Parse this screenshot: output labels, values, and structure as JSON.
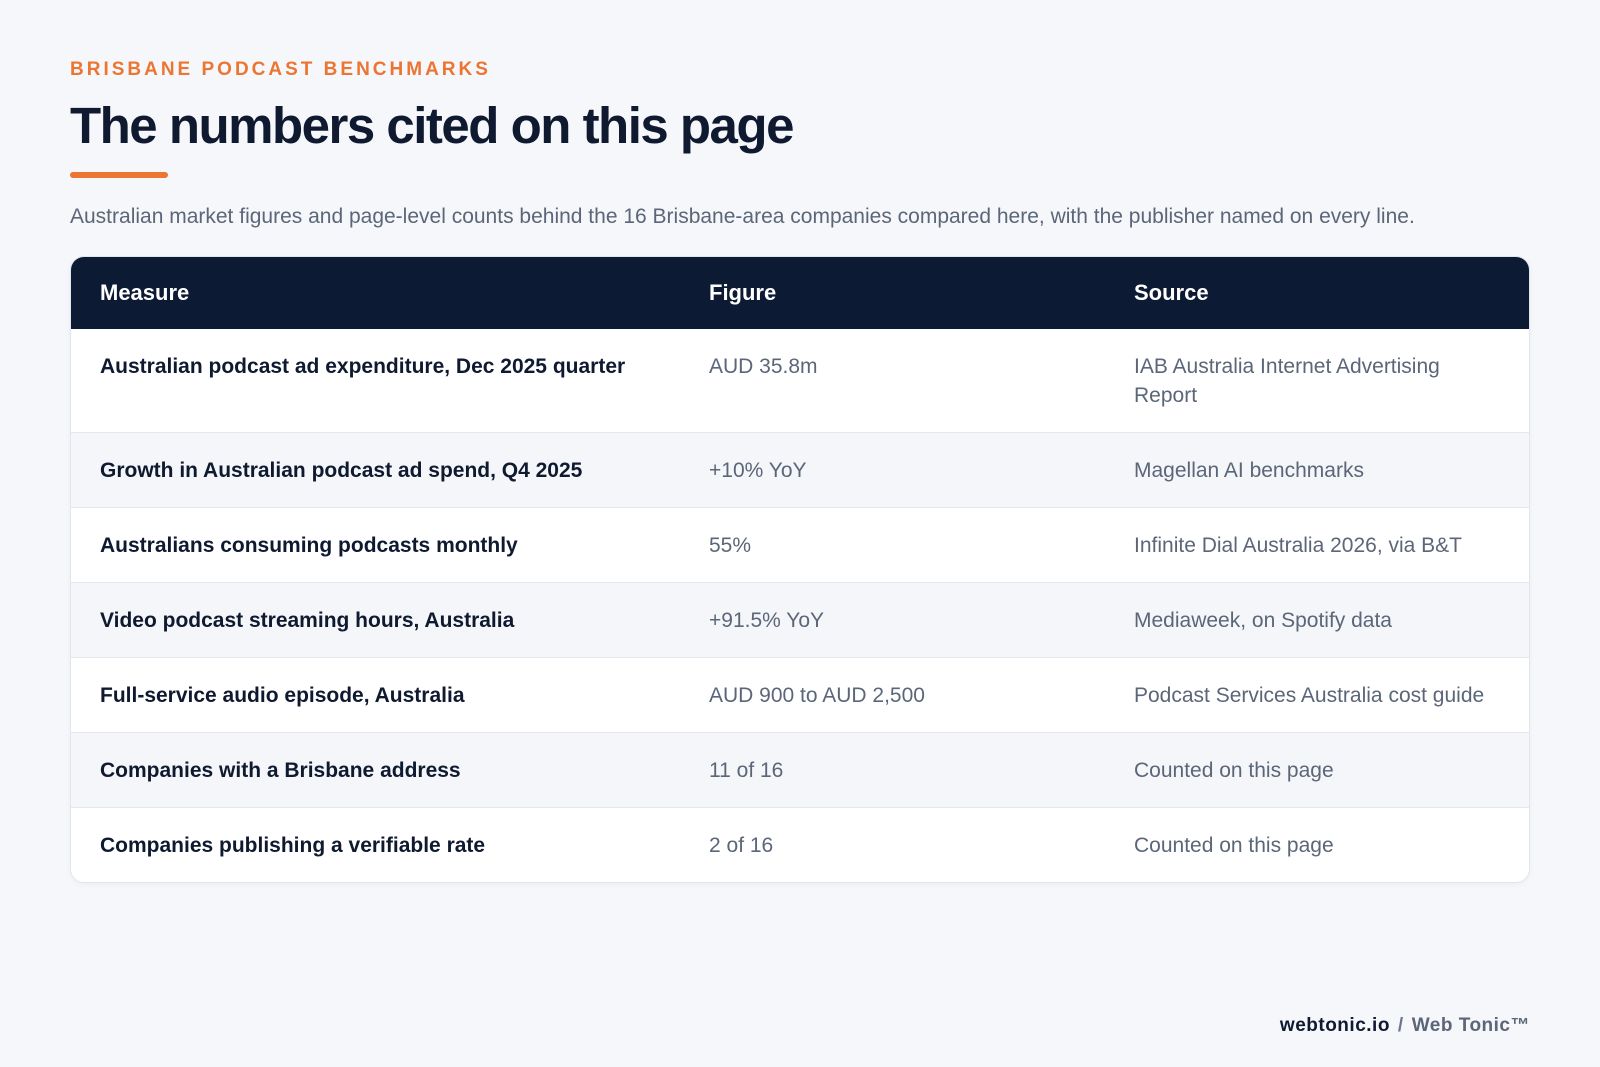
{
  "header": {
    "eyebrow": "BRISBANE PODCAST BENCHMARKS",
    "title": "The numbers cited on this page",
    "subtitle": "Australian market figures and page-level counts behind the 16 Brisbane-area companies compared here, with the publisher named on every line."
  },
  "table": {
    "columns": [
      "Measure",
      "Figure",
      "Source"
    ],
    "rows": [
      {
        "measure": "Australian podcast ad expenditure, Dec 2025 quarter",
        "figure": "AUD 35.8m",
        "source": "IAB Australia Internet Advertising Report"
      },
      {
        "measure": "Growth in Australian podcast ad spend, Q4 2025",
        "figure": "+10% YoY",
        "source": "Magellan AI benchmarks"
      },
      {
        "measure": "Australians consuming podcasts monthly",
        "figure": "55%",
        "source": "Infinite Dial Australia 2026, via B&T"
      },
      {
        "measure": "Video podcast streaming hours, Australia",
        "figure": "+91.5% YoY",
        "source": "Mediaweek, on Spotify data"
      },
      {
        "measure": "Full-service audio episode, Australia",
        "figure": "AUD 900 to AUD 2,500",
        "source": "Podcast Services Australia cost guide"
      },
      {
        "measure": "Companies with a Brisbane address",
        "figure": "11 of 16",
        "source": "Counted on this page"
      },
      {
        "measure": "Companies publishing a verifiable rate",
        "figure": "2 of 16",
        "source": "Counted on this page"
      }
    ]
  },
  "footer": {
    "domain": "webtonic.io",
    "separator": "/",
    "brand": "Web Tonic™"
  },
  "colors": {
    "accent": "#ec7532",
    "header_bg": "#0d1a33",
    "page_bg": "#f5f7fa",
    "text_dark": "#0f1a30",
    "text_muted": "#5b6678"
  }
}
